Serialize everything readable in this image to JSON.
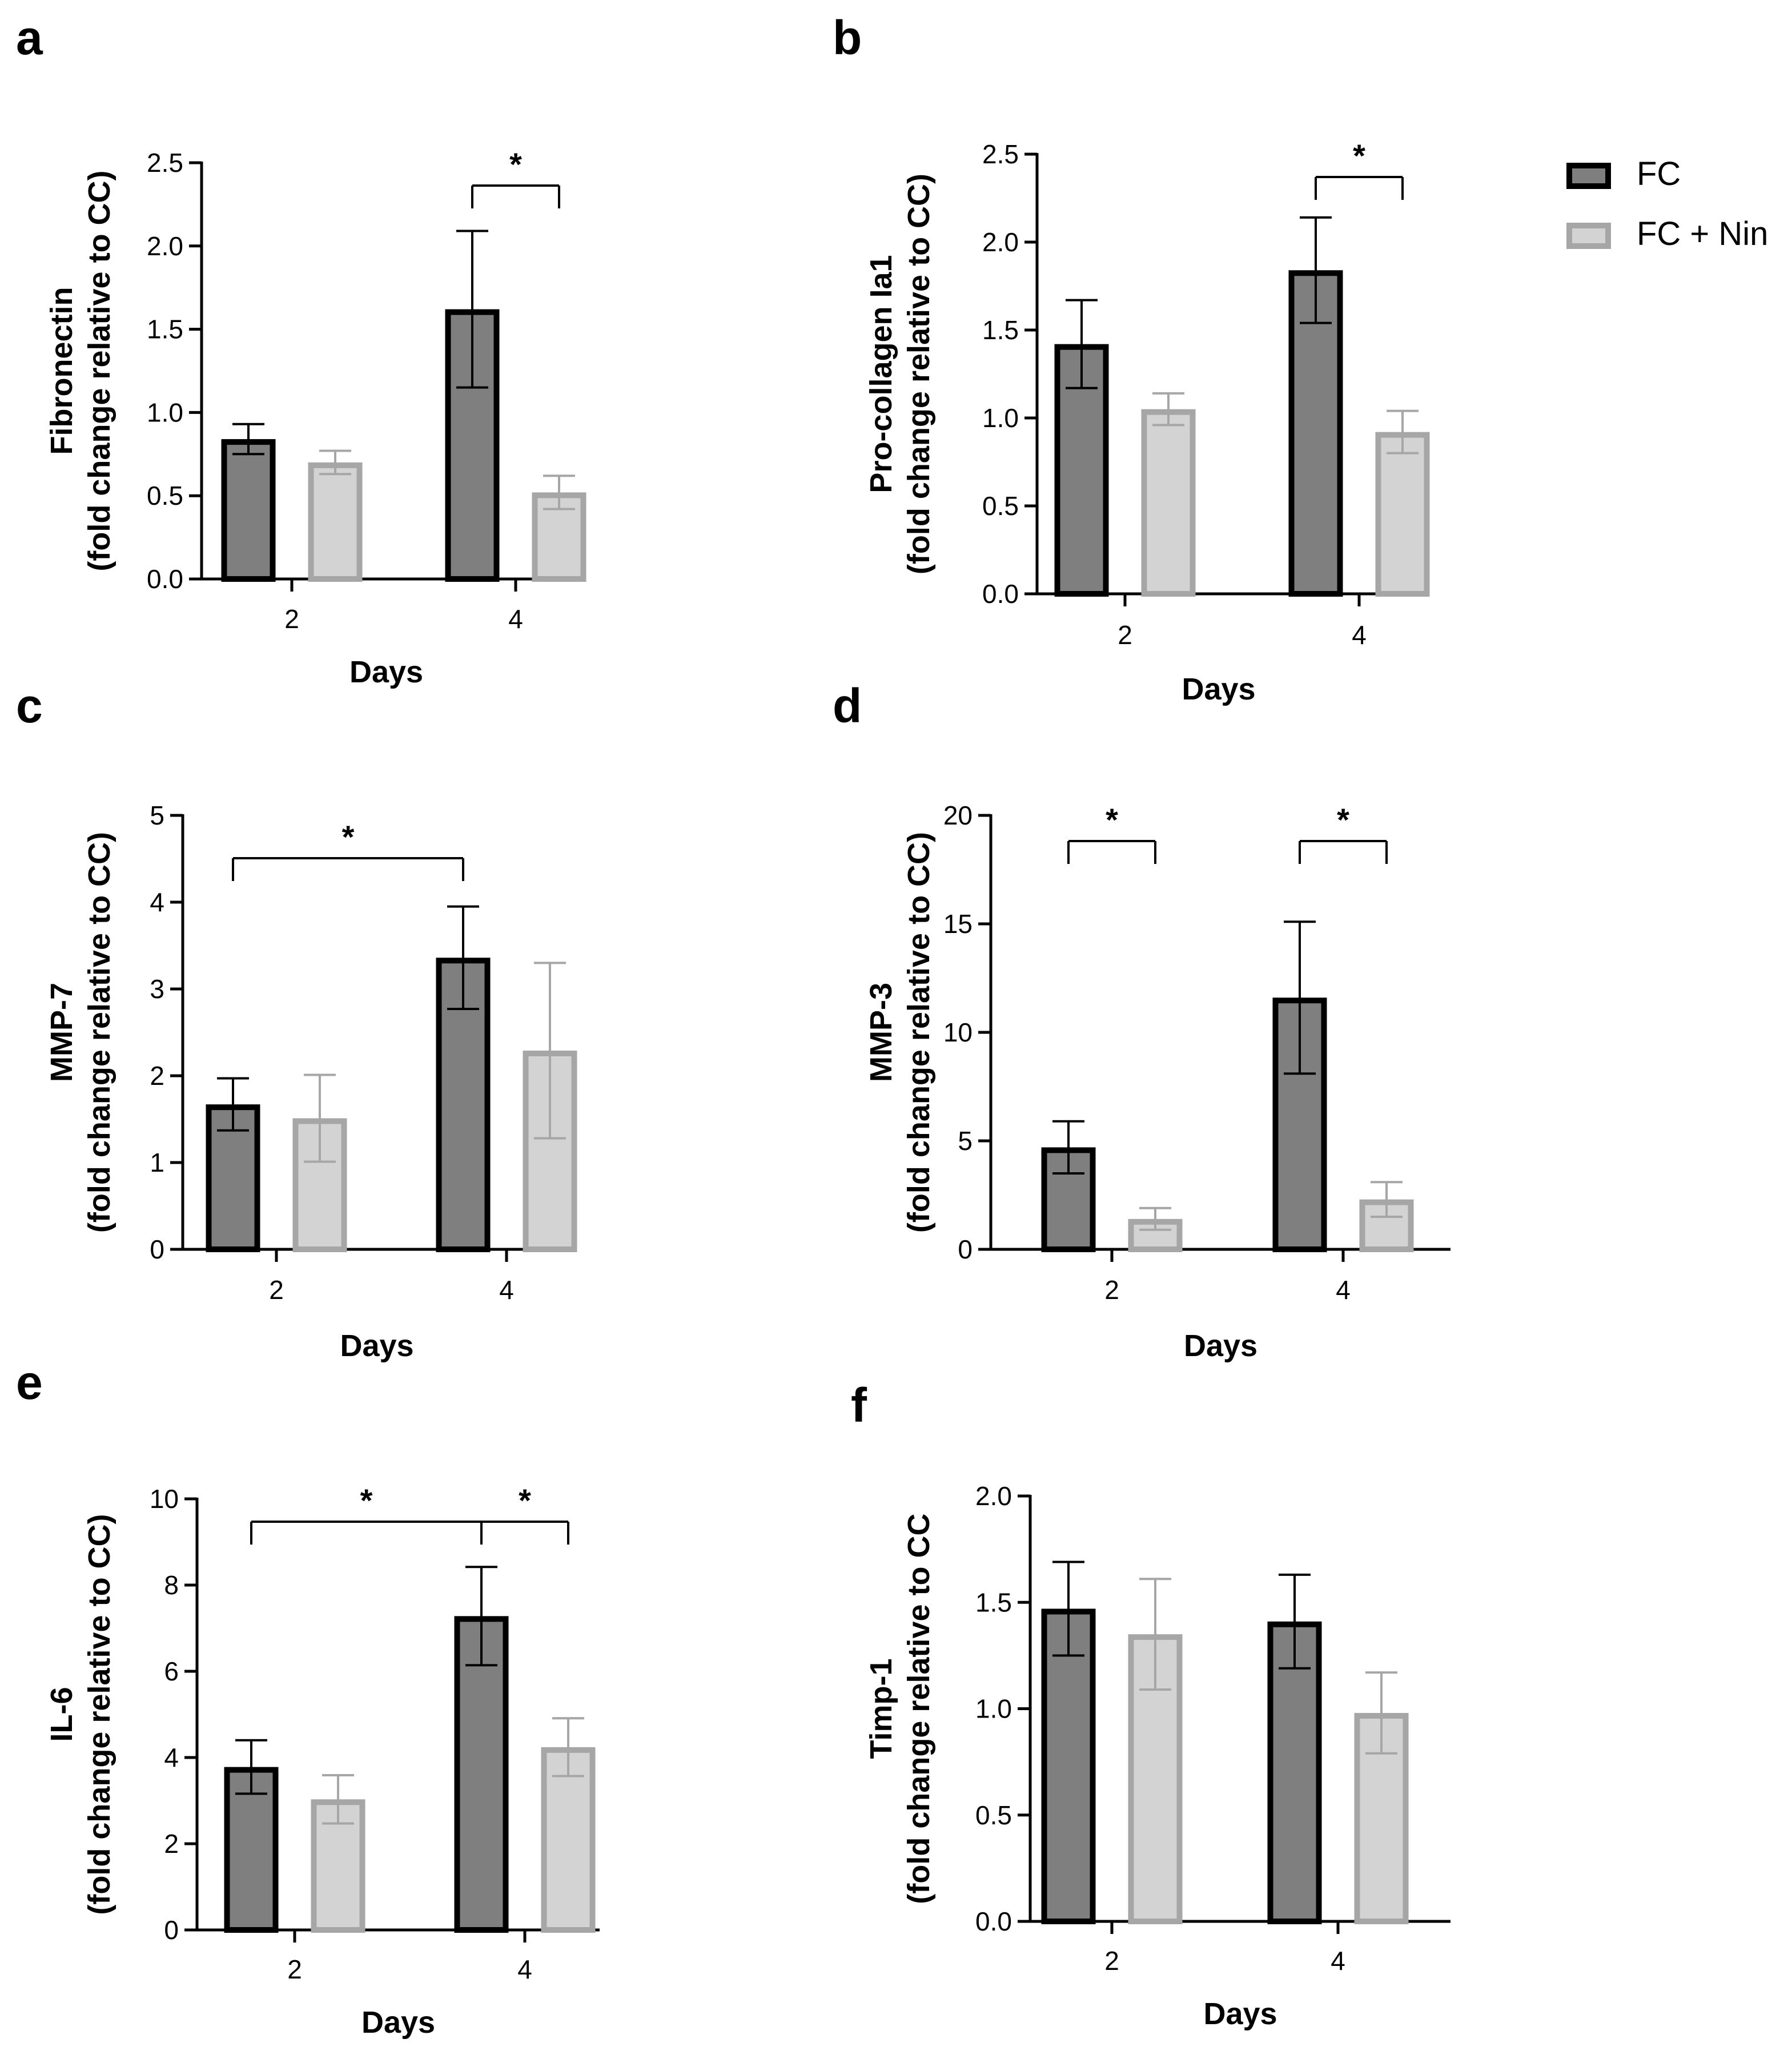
{
  "legend": {
    "series": [
      {
        "name": "FC",
        "fill": "#7f7f7f",
        "stroke": "#000000"
      },
      {
        "name": "FC + Nin",
        "fill": "#d3d3d3",
        "stroke": "#a6a6a6"
      }
    ]
  },
  "chart_data": [
    {
      "panel": "a",
      "type": "bar",
      "title": "",
      "xlabel": "Days",
      "ylabel": [
        "Fibronectin",
        "(fold change relative to CC)"
      ],
      "categories": [
        "2",
        "4"
      ],
      "ylim": [
        0,
        2.5
      ],
      "yticks": [
        0,
        0.5,
        1.0,
        1.5,
        2.0,
        2.5
      ],
      "ytick_labels": [
        "0.0",
        "0.5",
        "1.0",
        "1.5",
        "2.0",
        "2.5"
      ],
      "series": [
        {
          "name": "FC",
          "values": [
            0.84,
            1.62
          ],
          "errors": [
            0.09,
            0.47
          ]
        },
        {
          "name": "FC + Nin",
          "values": [
            0.7,
            0.52
          ],
          "errors": [
            0.07,
            0.1
          ]
        }
      ],
      "significance": [
        {
          "from": [
            1,
            0
          ],
          "to": [
            1,
            1
          ],
          "label": "*"
        }
      ]
    },
    {
      "panel": "b",
      "type": "bar",
      "title": "",
      "xlabel": "Days",
      "ylabel": [
        "Pro-collagen Ia1",
        "(fold change relative to CC)"
      ],
      "categories": [
        "2",
        "4"
      ],
      "ylim": [
        0,
        2.5
      ],
      "yticks": [
        0,
        0.5,
        1.0,
        1.5,
        2.0,
        2.5
      ],
      "ytick_labels": [
        "0.0",
        "0.5",
        "1.0",
        "1.5",
        "2.0",
        "2.5"
      ],
      "series": [
        {
          "name": "FC",
          "values": [
            1.42,
            1.84
          ],
          "errors": [
            0.25,
            0.3
          ]
        },
        {
          "name": "FC + Nin",
          "values": [
            1.05,
            0.92
          ],
          "errors": [
            0.09,
            0.12
          ]
        }
      ],
      "significance": [
        {
          "from": [
            1,
            0
          ],
          "to": [
            1,
            1
          ],
          "label": "*"
        }
      ]
    },
    {
      "panel": "c",
      "type": "bar",
      "title": "",
      "xlabel": "Days",
      "ylabel": [
        "MMP-7",
        "(fold change relative to CC)"
      ],
      "categories": [
        "2",
        "4"
      ],
      "ylim": [
        0,
        5
      ],
      "yticks": [
        0,
        1,
        2,
        3,
        4,
        5
      ],
      "ytick_labels": [
        "0",
        "1",
        "2",
        "3",
        "4",
        "5"
      ],
      "series": [
        {
          "name": "FC",
          "values": [
            1.67,
            3.36
          ],
          "errors": [
            0.3,
            0.59
          ]
        },
        {
          "name": "FC + Nin",
          "values": [
            1.51,
            2.29
          ],
          "errors": [
            0.5,
            1.01
          ]
        }
      ],
      "significance": [
        {
          "from": [
            0,
            0
          ],
          "to": [
            1,
            0
          ],
          "label": "*"
        }
      ]
    },
    {
      "panel": "d",
      "type": "bar",
      "title": "",
      "xlabel": "Days",
      "ylabel": [
        "MMP-3",
        "(fold change relative to CC)"
      ],
      "categories": [
        "2",
        "4"
      ],
      "ylim": [
        0,
        20
      ],
      "yticks": [
        0,
        5,
        10,
        15,
        20
      ],
      "ytick_labels": [
        "0",
        "5",
        "10",
        "15",
        "20"
      ],
      "series": [
        {
          "name": "FC",
          "values": [
            4.7,
            11.6
          ],
          "errors": [
            1.2,
            3.5
          ]
        },
        {
          "name": "FC + Nin",
          "values": [
            1.4,
            2.3
          ],
          "errors": [
            0.5,
            0.8
          ]
        }
      ],
      "significance": [
        {
          "from": [
            0,
            0
          ],
          "to": [
            0,
            1
          ],
          "label": "*"
        },
        {
          "from": [
            1,
            0
          ],
          "to": [
            1,
            1
          ],
          "label": "*"
        }
      ]
    },
    {
      "panel": "e",
      "type": "bar",
      "title": "",
      "xlabel": "Days",
      "ylabel": [
        "IL-6",
        "(fold change relative to CC)"
      ],
      "categories": [
        "2",
        "4"
      ],
      "ylim": [
        0,
        10
      ],
      "yticks": [
        0,
        2,
        4,
        6,
        8,
        10
      ],
      "ytick_labels": [
        "0",
        "2",
        "4",
        "6",
        "8",
        "10"
      ],
      "series": [
        {
          "name": "FC",
          "values": [
            3.78,
            7.28
          ],
          "errors": [
            0.62,
            1.14
          ]
        },
        {
          "name": "FC + Nin",
          "values": [
            3.03,
            4.24
          ],
          "errors": [
            0.56,
            0.67
          ]
        }
      ],
      "significance": [
        {
          "from": [
            0,
            0
          ],
          "to": [
            1,
            0
          ],
          "label": "*"
        },
        {
          "from": [
            1,
            0
          ],
          "to": [
            1,
            1
          ],
          "label": "*"
        }
      ]
    },
    {
      "panel": "f",
      "type": "bar",
      "title": "",
      "xlabel": "Days",
      "ylabel": [
        "Timp-1",
        "(fold change relative to CC"
      ],
      "categories": [
        "2",
        "4"
      ],
      "ylim": [
        0,
        2.0
      ],
      "yticks": [
        0,
        0.5,
        1.0,
        1.5,
        2.0
      ],
      "ytick_labels": [
        "0.0",
        "0.5",
        "1.0",
        "1.5",
        "2.0"
      ],
      "series": [
        {
          "name": "FC",
          "values": [
            1.47,
            1.41
          ],
          "errors": [
            0.22,
            0.22
          ]
        },
        {
          "name": "FC + Nin",
          "values": [
            1.35,
            0.98
          ],
          "errors": [
            0.26,
            0.19
          ]
        }
      ],
      "significance": []
    }
  ]
}
